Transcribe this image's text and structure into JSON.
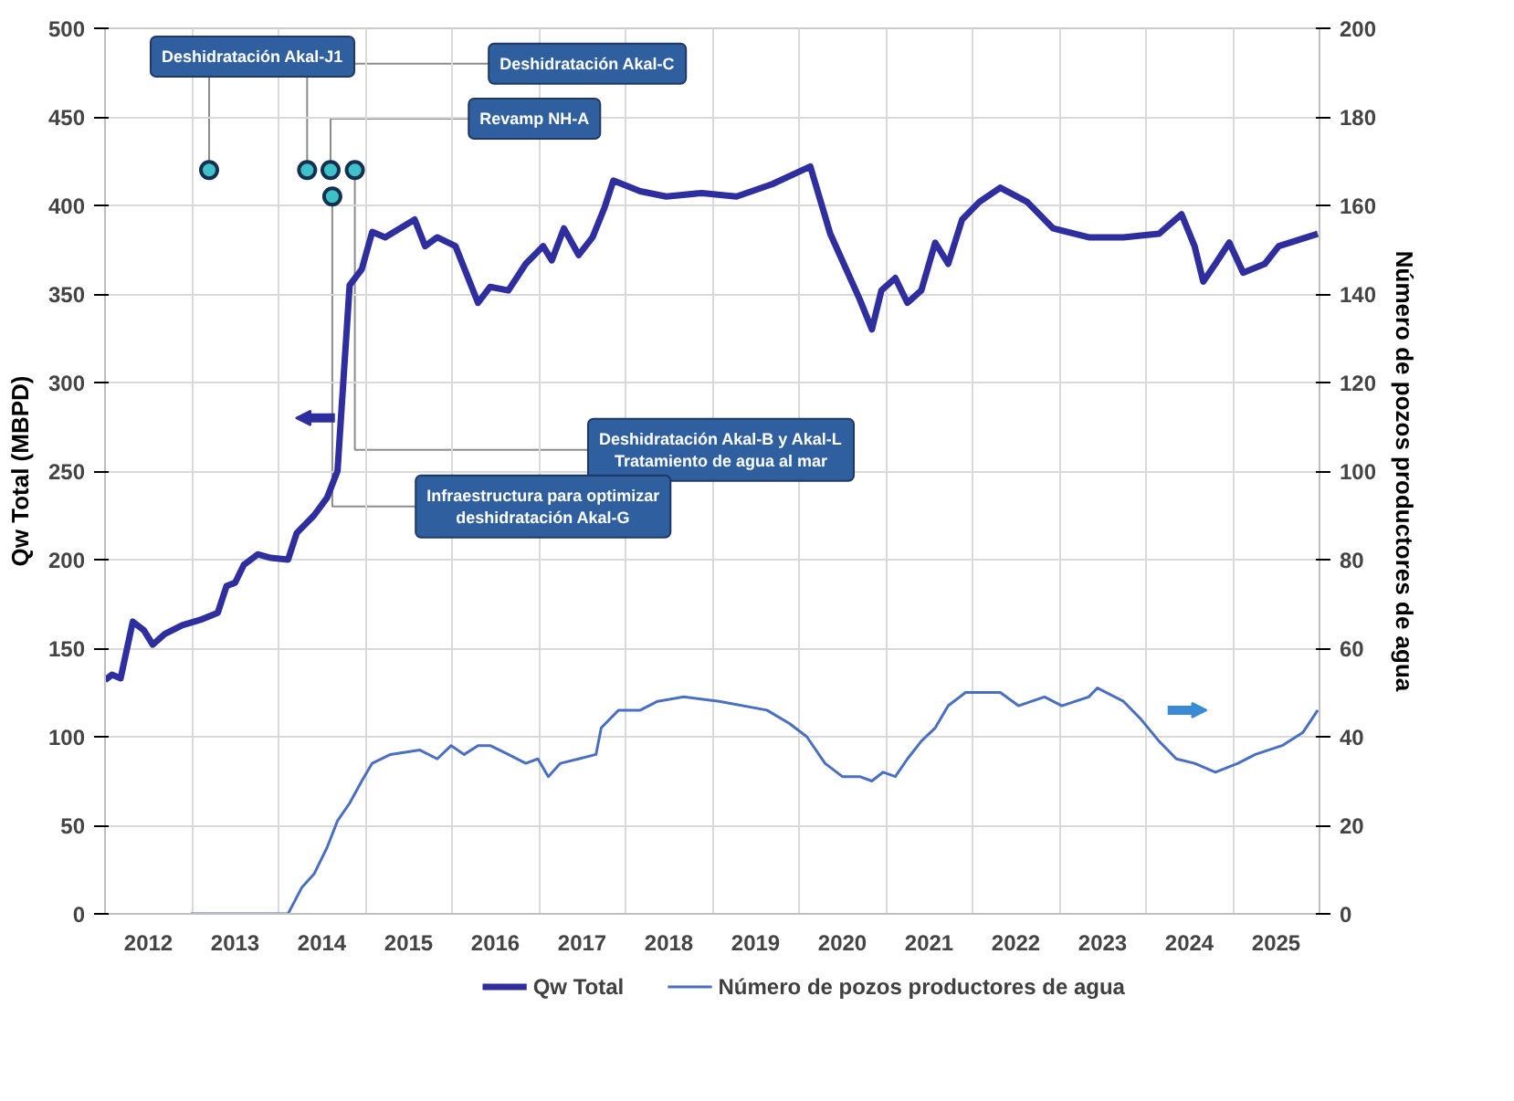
{
  "chart_data": {
    "type": "line",
    "ylabel": "Qw Total (MBPD)",
    "y2label": "Número de pozos productores de agua",
    "xlim": [
      2012,
      2026
    ],
    "ylim": [
      0,
      500
    ],
    "y2lim": [
      0,
      200
    ],
    "xticks": [
      {
        "value": 2012,
        "label": null
      },
      {
        "value": 2012.5,
        "label": "2012"
      },
      {
        "value": 2013,
        "label": null
      },
      {
        "value": 2013.5,
        "label": "2013"
      },
      {
        "value": 2014,
        "label": null
      },
      {
        "value": 2014.5,
        "label": "2014"
      },
      {
        "value": 2015,
        "label": null
      },
      {
        "value": 2015.5,
        "label": "2015"
      },
      {
        "value": 2016,
        "label": null
      },
      {
        "value": 2016.5,
        "label": "2016"
      },
      {
        "value": 2017,
        "label": null
      },
      {
        "value": 2017.5,
        "label": "2017"
      },
      {
        "value": 2018,
        "label": null
      },
      {
        "value": 2018.5,
        "label": "2018"
      },
      {
        "value": 2019,
        "label": null
      },
      {
        "value": 2019.5,
        "label": "2019"
      },
      {
        "value": 2020,
        "label": null
      },
      {
        "value": 2020.5,
        "label": "2020"
      },
      {
        "value": 2021,
        "label": null
      },
      {
        "value": 2021.5,
        "label": "2021"
      },
      {
        "value": 2022,
        "label": null
      },
      {
        "value": 2022.5,
        "label": "2022"
      },
      {
        "value": 2023,
        "label": null
      },
      {
        "value": 2023.5,
        "label": "2023"
      },
      {
        "value": 2024,
        "label": null
      },
      {
        "value": 2024.5,
        "label": "2024"
      },
      {
        "value": 2025,
        "label": null
      },
      {
        "value": 2025.5,
        "label": "2025"
      },
      {
        "value": 2026,
        "label": null
      }
    ],
    "yticks": [
      0,
      50,
      100,
      150,
      200,
      250,
      300,
      350,
      400,
      450,
      500
    ],
    "y2ticks": [
      0,
      20,
      40,
      60,
      80,
      100,
      120,
      140,
      160,
      180,
      200
    ],
    "grid": true,
    "legend": "bottom",
    "marker": "none",
    "line_style": "solid",
    "series": [
      {
        "name": "Qw Total",
        "color": "#2e2e9e",
        "x": [
          2012.0,
          2012.08,
          2012.18,
          2012.32,
          2012.45,
          2012.55,
          2012.69,
          2012.89,
          2013.1,
          2013.3,
          2013.4,
          2013.5,
          2013.6,
          2013.76,
          2013.91,
          2014.11,
          2014.21,
          2014.41,
          2014.56,
          2014.68,
          2014.82,
          2014.96,
          2015.08,
          2015.23,
          2015.57,
          2015.69,
          2015.83,
          2016.04,
          2016.3,
          2016.44,
          2016.65,
          2016.85,
          2017.05,
          2017.15,
          2017.29,
          2017.46,
          2017.62,
          2017.76,
          2017.86,
          2018.17,
          2018.47,
          2018.88,
          2019.28,
          2019.69,
          2020.13,
          2020.36,
          2020.7,
          2020.84,
          2020.95,
          2021.11,
          2021.25,
          2021.41,
          2021.57,
          2021.72,
          2021.88,
          2022.08,
          2022.32,
          2022.63,
          2022.93,
          2023.34,
          2023.74,
          2024.15,
          2024.41,
          2024.56,
          2024.66,
          2024.8,
          2024.96,
          2025.12,
          2025.37,
          2025.53,
          2025.98
        ],
        "values": [
          132,
          135,
          133,
          165,
          160,
          152,
          158,
          163,
          166,
          170,
          185,
          187,
          197,
          203,
          201,
          200,
          215,
          225,
          235,
          250,
          355,
          364,
          385,
          382,
          392,
          377,
          382,
          377,
          345,
          354,
          352,
          367,
          377,
          369,
          387,
          372,
          382,
          399,
          414,
          408,
          405,
          407,
          405,
          412,
          422,
          384,
          347,
          330,
          352,
          359,
          345,
          352,
          379,
          367,
          392,
          402,
          410,
          402,
          387,
          382,
          382,
          384,
          395,
          377,
          357,
          367,
          379,
          362,
          367,
          377,
          384
        ]
      },
      {
        "name": "Número de pozos productores de agua",
        "color": "#4a6fc0",
        "axis": "y2",
        "x": [
          2012.99,
          2014.11,
          2014.27,
          2014.41,
          2014.56,
          2014.68,
          2014.82,
          2014.96,
          2015.08,
          2015.29,
          2015.63,
          2015.83,
          2015.99,
          2016.14,
          2016.3,
          2016.44,
          2016.65,
          2016.85,
          2016.99,
          2017.11,
          2017.25,
          2017.46,
          2017.66,
          2017.72,
          2017.92,
          2018.17,
          2018.37,
          2018.67,
          2019.08,
          2019.63,
          2019.89,
          2020.09,
          2020.3,
          2020.5,
          2020.7,
          2020.84,
          2020.97,
          2021.11,
          2021.25,
          2021.41,
          2021.57,
          2021.72,
          2021.92,
          2022.32,
          2022.53,
          2022.83,
          2023.03,
          2023.34,
          2023.44,
          2023.74,
          2023.94,
          2024.15,
          2024.35,
          2024.56,
          2024.8,
          2025.06,
          2025.26,
          2025.57,
          2025.81,
          2025.98
        ],
        "values": [
          0,
          0,
          6,
          9,
          15,
          21,
          25,
          30,
          34,
          36,
          37,
          35,
          38,
          36,
          38,
          38,
          36,
          34,
          35,
          31,
          34,
          35,
          36,
          42,
          46,
          46,
          48,
          49,
          48,
          46,
          43,
          40,
          34,
          31,
          31,
          30,
          32,
          31,
          35,
          39,
          42,
          47,
          50,
          50,
          47,
          49,
          47,
          49,
          51,
          48,
          44,
          39,
          35,
          34,
          32,
          34,
          36,
          38,
          41,
          46
        ]
      },
      {
        "type": "scatter",
        "color": "#3ec1c9",
        "marker": "circle",
        "x": [
          2013.2,
          2014.33,
          2014.6,
          2014.88,
          2014.62
        ],
        "values": [
          420,
          420,
          420,
          420,
          405
        ]
      }
    ],
    "annotations": [
      {
        "text": "Deshidratación Akal-J1",
        "x": 2013.2,
        "y": 420
      },
      {
        "text": "Deshidratación Akal-C",
        "x": 2014.33,
        "y": 420
      },
      {
        "text": "Revamp NH-A",
        "x": 2014.6,
        "y": 420
      },
      {
        "text": "Deshidratación Akal-B y Akal-L\nTratamiento de agua al mar",
        "x": 2014.88,
        "y": 420
      },
      {
        "text": "Infraestructura para optimizar\ndeshidratación Akal-G",
        "x": 2014.62,
        "y": 405
      }
    ]
  }
}
